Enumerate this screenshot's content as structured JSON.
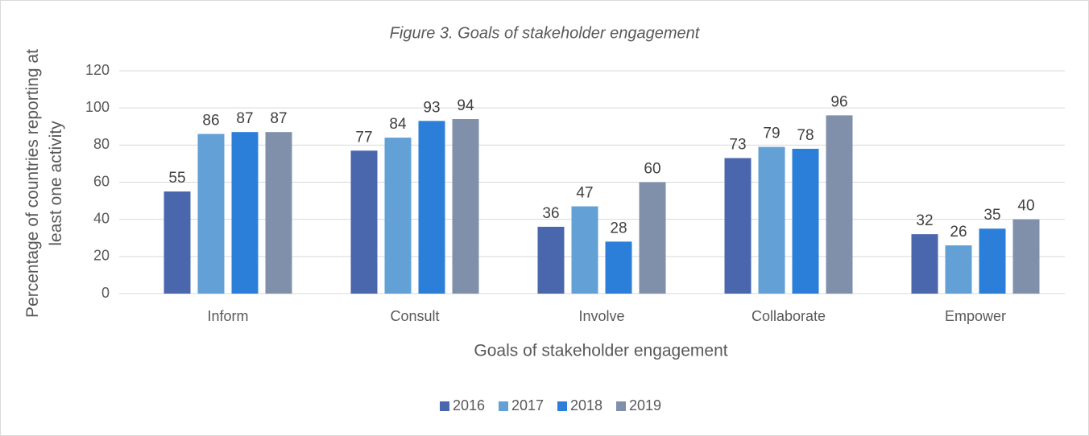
{
  "chart_data": {
    "type": "bar",
    "title": "Figure 3. Goals of stakeholder engagement",
    "x_label": "Goals of stakeholder engagement",
    "y_label": "Percentage of countries reporting at least one activity",
    "categories": [
      "Inform",
      "Consult",
      "Involve",
      "Collaborate",
      "Empower"
    ],
    "series": [
      {
        "name": "2016",
        "color": "#4a66ad",
        "values": [
          55,
          77,
          36,
          73,
          32
        ]
      },
      {
        "name": "2017",
        "color": "#62a0d6",
        "values": [
          86,
          84,
          47,
          79,
          26
        ]
      },
      {
        "name": "2018",
        "color": "#2b7fd9",
        "values": [
          87,
          93,
          28,
          78,
          35
        ]
      },
      {
        "name": "2019",
        "color": "#8090ab",
        "values": [
          87,
          94,
          60,
          96,
          40
        ]
      }
    ],
    "ylim": [
      0,
      120
    ],
    "yticks": [
      0,
      20,
      40,
      60,
      80,
      100,
      120
    ],
    "grid": true,
    "legend": "bottom"
  }
}
